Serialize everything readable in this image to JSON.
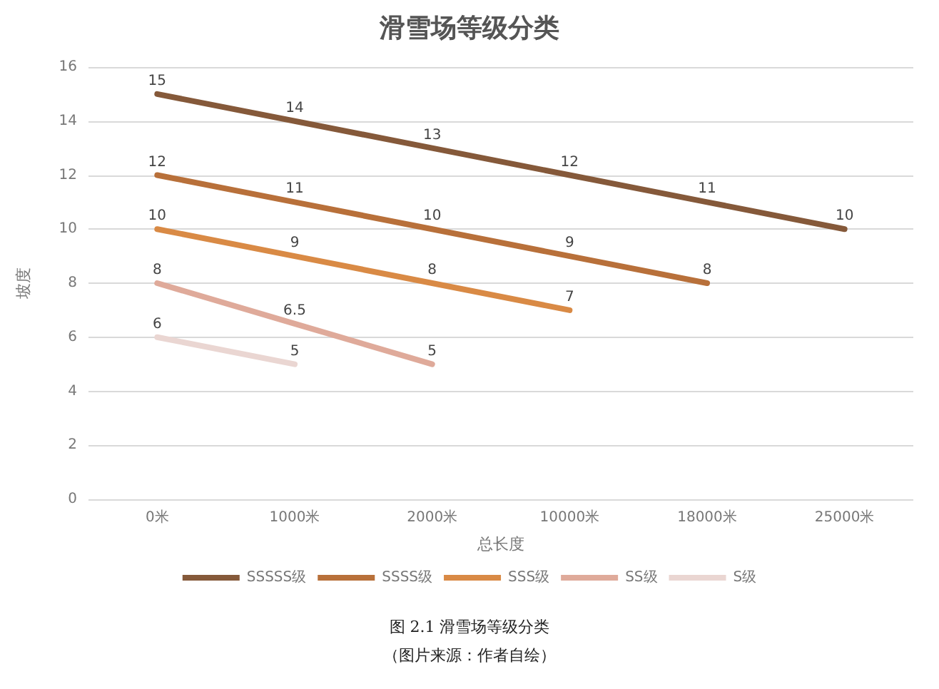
{
  "chart_data": {
    "type": "line",
    "title": "滑雪场等级分类",
    "xlabel": "总长度",
    "ylabel": "坡度",
    "categories": [
      "0米",
      "1000米",
      "2000米",
      "10000米",
      "18000米",
      "25000米"
    ],
    "series": [
      {
        "name": "SSSSS级",
        "color": "#85593a",
        "values": [
          15,
          14,
          13,
          12,
          11,
          10
        ]
      },
      {
        "name": "SSSS级",
        "color": "#b8703a",
        "values": [
          12,
          11,
          10,
          9,
          8,
          null
        ]
      },
      {
        "name": "SSS级",
        "color": "#d98a45",
        "values": [
          10,
          9,
          8,
          7,
          null,
          null
        ]
      },
      {
        "name": "SS级",
        "color": "#dfaa9a",
        "values": [
          8,
          6.5,
          5,
          null,
          null,
          null
        ]
      },
      {
        "name": "S级",
        "color": "#ead6d2",
        "values": [
          6,
          5,
          null,
          null,
          null,
          null
        ]
      }
    ],
    "ylim": [
      0,
      16
    ],
    "yticks": [
      0,
      2,
      4,
      6,
      8,
      10,
      12,
      14,
      16
    ],
    "grid": "y",
    "legend": "bottom",
    "marker": "none",
    "line_style": "solid",
    "data_labels": true,
    "annotations": [
      "图 2.1 滑雪场等级分类",
      "（图片来源：作者自绘）"
    ]
  }
}
